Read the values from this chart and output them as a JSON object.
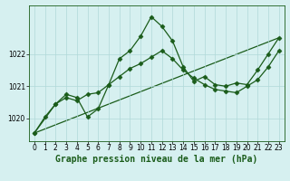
{
  "title": "Graphe pression niveau de la mer (hPa)",
  "background_color": "#d6f0f0",
  "grid_color": "#b0d8d8",
  "line_color": "#1a5c1a",
  "xlim": [
    -0.5,
    23.5
  ],
  "ylim": [
    1019.3,
    1023.5
  ],
  "yticks": [
    1020,
    1021,
    1022
  ],
  "xticks": [
    0,
    1,
    2,
    3,
    4,
    5,
    6,
    7,
    8,
    9,
    10,
    11,
    12,
    13,
    14,
    15,
    16,
    17,
    18,
    19,
    20,
    21,
    22,
    23
  ],
  "series1_x": [
    0,
    1,
    2,
    3,
    4,
    5,
    6,
    7,
    8,
    9,
    10,
    11,
    12,
    13,
    14,
    15,
    16,
    17,
    18,
    19,
    20,
    21,
    22,
    23
  ],
  "series1_y": [
    1019.55,
    1020.05,
    1020.45,
    1020.75,
    1020.65,
    1020.05,
    1020.3,
    1021.05,
    1021.85,
    1022.1,
    1022.55,
    1023.15,
    1022.85,
    1022.4,
    1021.6,
    1021.15,
    1021.3,
    1021.05,
    1021.0,
    1021.1,
    1021.05,
    1021.5,
    1022.0,
    1022.5
  ],
  "series2_x": [
    0,
    2,
    3,
    4,
    5,
    6,
    7,
    8,
    9,
    10,
    11,
    12,
    13,
    14,
    15,
    16,
    17,
    18,
    19,
    20,
    21,
    22,
    23
  ],
  "series2_y": [
    1019.55,
    1020.45,
    1020.65,
    1020.55,
    1020.75,
    1020.8,
    1021.05,
    1021.3,
    1021.55,
    1021.7,
    1021.9,
    1022.1,
    1021.85,
    1021.5,
    1021.25,
    1021.05,
    1020.9,
    1020.85,
    1020.8,
    1021.0,
    1021.2,
    1021.6,
    1022.1
  ],
  "series3_x": [
    0,
    23
  ],
  "series3_y": [
    1019.55,
    1022.5
  ],
  "marker": "D",
  "markersize": 2.5,
  "tick_fontsize": 5.5,
  "xlabel_fontsize": 7
}
